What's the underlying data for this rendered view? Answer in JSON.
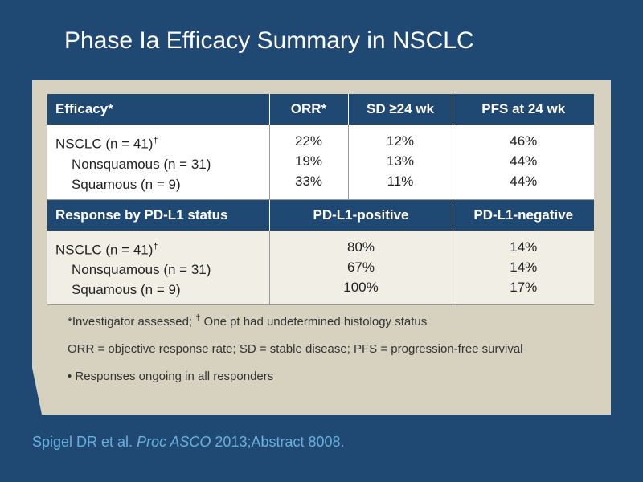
{
  "title": "Phase Ia Efficacy Summary in NSCLC",
  "efficacy": {
    "headers": [
      "Efficacy*",
      "ORR*",
      "SD ≥24 wk",
      "PFS at 24 wk"
    ],
    "rows": [
      {
        "label": "NSCLC (n = 41)",
        "mark": "†",
        "orr": "22%",
        "sd": "12%",
        "pfs": "46%"
      },
      {
        "label": "Nonsquamous (n = 31)",
        "orr": "19%",
        "sd": "13%",
        "pfs": "44%"
      },
      {
        "label": "Squamous (n = 9)",
        "orr": "33%",
        "sd": "11%",
        "pfs": "44%"
      }
    ]
  },
  "pdl1": {
    "headers": [
      "Response by PD-L1 status",
      "PD-L1-positive",
      "PD-L1-negative"
    ],
    "rows": [
      {
        "label": "NSCLC (n = 41)",
        "mark": "†",
        "pos": "80%",
        "neg": "14%"
      },
      {
        "label": "Nonsquamous (n = 31)",
        "pos": "67%",
        "neg": "14%"
      },
      {
        "label": "Squamous (n = 9)",
        "pos": "100%",
        "neg": "17%"
      }
    ]
  },
  "notes": {
    "footnote_a": "*Investigator assessed; ",
    "footnote_mark": "†",
    "footnote_b": " One pt had undetermined histology status",
    "abbreviations": "ORR = objective response rate; SD = stable disease; PFS = progression-free survival",
    "bullet": "• Responses ongoing in all responders"
  },
  "citation": {
    "authors": "Spigel DR et al. ",
    "journal": "Proc ASCO",
    "details": " 2013;Abstract 8008."
  }
}
